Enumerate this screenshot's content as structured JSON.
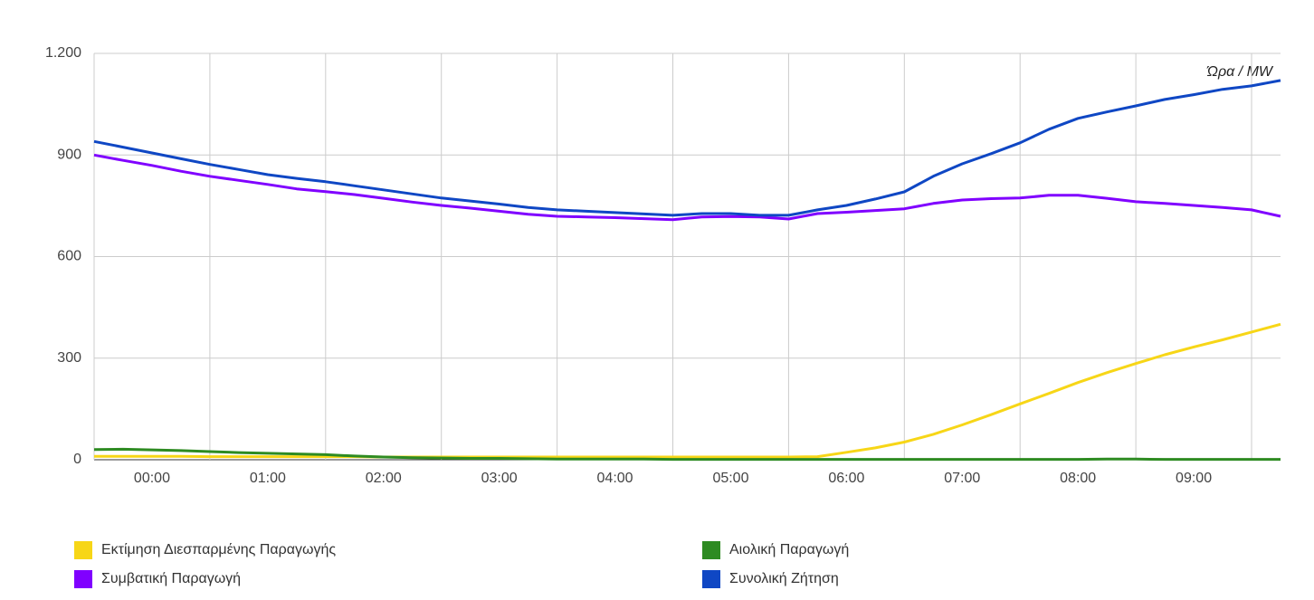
{
  "chart_data": {
    "type": "line",
    "annotation": "Ώρα / MW",
    "x": [
      -0.5,
      -0.25,
      0,
      0.25,
      0.5,
      0.75,
      1,
      1.25,
      1.5,
      1.75,
      2,
      2.25,
      2.5,
      2.75,
      3,
      3.25,
      3.5,
      3.75,
      4,
      4.25,
      4.5,
      4.75,
      5,
      5.25,
      5.5,
      5.75,
      6,
      6.25,
      6.5,
      6.75,
      7,
      7.25,
      7.5,
      7.75,
      8,
      8.25,
      8.5,
      8.75,
      9,
      9.25,
      9.5,
      9.75
    ],
    "xlim": [
      -0.5,
      9.75
    ],
    "xticks": [
      {
        "value": 0,
        "label": "00:00"
      },
      {
        "value": 1,
        "label": "01:00"
      },
      {
        "value": 2,
        "label": "02:00"
      },
      {
        "value": 3,
        "label": "03:00"
      },
      {
        "value": 4,
        "label": "04:00"
      },
      {
        "value": 5,
        "label": "05:00"
      },
      {
        "value": 6,
        "label": "06:00"
      },
      {
        "value": 7,
        "label": "07:00"
      },
      {
        "value": 8,
        "label": "08:00"
      },
      {
        "value": 9,
        "label": "09:00"
      }
    ],
    "xgrid": [
      -0.5,
      0.5,
      1.5,
      2.5,
      3.5,
      4.5,
      5.5,
      6.5,
      7.5,
      8.5,
      9.5
    ],
    "ylim": [
      0,
      1200
    ],
    "yticks": [
      0,
      300,
      600,
      900,
      {
        "value": 1200,
        "label": "1.200"
      }
    ],
    "grid": true,
    "legend": "bottom",
    "series": [
      {
        "name": "Εκτίμηση Διεσπαρμένης Παραγωγής",
        "color": "#f7d617",
        "values": [
          10,
          10,
          10,
          10,
          9,
          9,
          9,
          9,
          9,
          9,
          8,
          8,
          8,
          8,
          8,
          8,
          8,
          8,
          8,
          8,
          8,
          8,
          8,
          8,
          8,
          9,
          22,
          35,
          52,
          75,
          103,
          133,
          165,
          196,
          228,
          257,
          284,
          310,
          333,
          354,
          377,
          400
        ]
      },
      {
        "name": "Αιολική Παραγωγή",
        "color": "#2e8b22",
        "values": [
          30,
          31,
          29,
          27,
          24,
          21,
          19,
          17,
          15,
          11,
          8,
          6,
          5,
          4,
          4,
          3,
          2,
          2,
          2,
          2,
          1,
          1,
          1,
          1,
          1,
          1,
          1,
          1,
          1,
          1,
          1,
          1,
          1,
          1,
          1,
          2,
          2,
          1,
          1,
          1,
          1,
          1
        ]
      },
      {
        "name": "Συμβατική Παραγωγή",
        "color": "#8000ff",
        "values": [
          900,
          884,
          869,
          852,
          837,
          825,
          813,
          800,
          792,
          783,
          772,
          761,
          751,
          743,
          734,
          725,
          719,
          717,
          715,
          712,
          709,
          717,
          718,
          717,
          711,
          727,
          731,
          736,
          741,
          757,
          767,
          771,
          773,
          781,
          781,
          772,
          762,
          757,
          751,
          745,
          738,
          719
        ]
      },
      {
        "name": "Συνολική Ζήτηση",
        "color": "#0f47c4",
        "values": [
          940,
          923,
          906,
          889,
          872,
          857,
          842,
          831,
          821,
          809,
          797,
          785,
          773,
          764,
          755,
          745,
          738,
          734,
          730,
          726,
          722,
          727,
          727,
          722,
          722,
          738,
          751,
          770,
          791,
          837,
          874,
          904,
          936,
          976,
          1008,
          1027,
          1045,
          1064,
          1078,
          1094,
          1104,
          1120
        ]
      }
    ]
  }
}
